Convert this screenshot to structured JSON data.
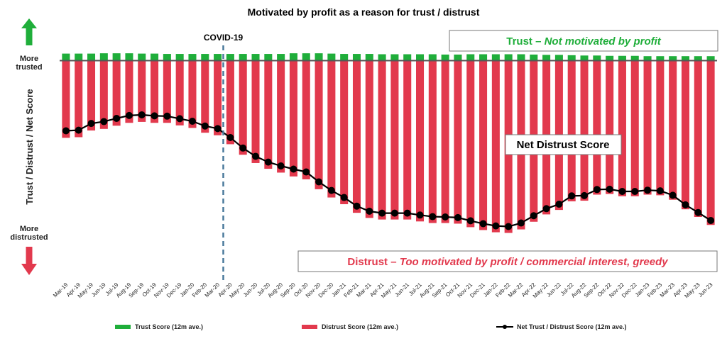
{
  "chart_data": {
    "type": "bar",
    "title": "Motivated by profit as a reason for trust / distrust",
    "ylabel": "Trust / Distrust / Net Score",
    "y_top_label": "More trusted",
    "y_bottom_label": "More distrusted",
    "categories": [
      "Mar-19",
      "Apr-19",
      "May-19",
      "Jun-19",
      "Jul-19",
      "Aug-19",
      "Sep-19",
      "Oct-19",
      "Nov-19",
      "Dec-19",
      "Jan-20",
      "Feb-20",
      "Mar-20",
      "Apr-20",
      "May-20",
      "Jun-20",
      "Jul-20",
      "Aug-20",
      "Sep-20",
      "Oct-20",
      "Nov-20",
      "Dec-20",
      "Jan-21",
      "Feb-21",
      "Mar-21",
      "Apr-21",
      "May-21",
      "Jun-21",
      "Jul-21",
      "Aug-21",
      "Sep-21",
      "Oct-21",
      "Nov-21",
      "Dec-21",
      "Jan-22",
      "Feb-22",
      "Mar-22",
      "Apr-22",
      "May-22",
      "Jun-22",
      "Jul-22",
      "Aug-22",
      "Sep-22",
      "Oct-22",
      "Nov-22",
      "Dec-22",
      "Jan-23",
      "Feb-23",
      "Mar-23",
      "Apr-23",
      "May-23",
      "Jun-23"
    ],
    "series": [
      {
        "name": "Trust Score (12m ave.)",
        "color": "#1fae3a",
        "values": [
          2.2,
          2.2,
          2.2,
          2.3,
          2.3,
          2.3,
          2.2,
          2.2,
          2.1,
          2.1,
          2.1,
          2.1,
          2.1,
          2.1,
          2.1,
          2.1,
          2.1,
          2.1,
          2.3,
          2.3,
          2.3,
          2.2,
          2.1,
          2.1,
          2.1,
          2.0,
          2.0,
          2.0,
          2.0,
          2.0,
          1.9,
          1.9,
          2.0,
          2.0,
          2.0,
          2.0,
          2.0,
          1.9,
          1.8,
          1.8,
          1.7,
          1.6,
          1.6,
          1.5,
          1.5,
          1.5,
          1.4,
          1.4,
          1.4,
          1.4,
          1.4,
          1.4
        ]
      },
      {
        "name": "Distrust Score (12m ave.)",
        "color": "#e2394d",
        "values": [
          -24.2,
          -24.0,
          -21.9,
          -21.4,
          -20.4,
          -19.5,
          -19.2,
          -19.5,
          -19.5,
          -20.3,
          -21.1,
          -22.6,
          -23.4,
          -26.2,
          -29.5,
          -32.1,
          -33.9,
          -35.1,
          -36.3,
          -37.2,
          -40.3,
          -42.9,
          -45.0,
          -47.7,
          -49.3,
          -49.8,
          -49.8,
          -49.8,
          -50.4,
          -50.9,
          -50.9,
          -51.1,
          -52.2,
          -53.1,
          -53.8,
          -54.0,
          -52.9,
          -50.5,
          -48.2,
          -46.8,
          -44.1,
          -43.9,
          -42.0,
          -41.8,
          -42.5,
          -42.5,
          -42.0,
          -42.2,
          -43.6,
          -46.6,
          -49.0,
          -51.5
        ]
      },
      {
        "name": "Net Trust / Distrust Score (12m ave.)",
        "color": "#000000",
        "values": [
          -22.0,
          -21.8,
          -19.7,
          -19.1,
          -18.1,
          -17.2,
          -17.0,
          -17.3,
          -17.4,
          -18.2,
          -19.0,
          -20.5,
          -21.3,
          -24.1,
          -27.4,
          -30.0,
          -31.8,
          -33.0,
          -34.0,
          -34.9,
          -38.0,
          -40.7,
          -42.9,
          -45.6,
          -47.2,
          -47.8,
          -47.8,
          -47.8,
          -48.4,
          -48.9,
          -49.0,
          -49.2,
          -50.2,
          -51.1,
          -51.8,
          -52.0,
          -50.9,
          -48.6,
          -46.4,
          -45.0,
          -42.4,
          -42.3,
          -40.4,
          -40.3,
          -41.0,
          -41.0,
          -40.6,
          -40.8,
          -42.2,
          -45.2,
          -47.6,
          -50.1
        ]
      }
    ],
    "ylim": [
      -57,
      3
    ],
    "grid": false,
    "legend": "bottom",
    "annotations": {
      "covid_label": "COVID-19",
      "covid_at": "Apr-20",
      "trust_box_prefix": "Trust – ",
      "trust_box_italic": "Not motivated by profit",
      "net_box": "Net Distrust Score",
      "distrust_box_prefix": "Distrust – ",
      "distrust_box_italic": "Too motivated by profit / commercial interest, greedy"
    },
    "colors": {
      "up_arrow": "#1fae3a",
      "down_arrow": "#e2394d",
      "covid_line": "#4a7a9c",
      "baseline": "#555555"
    }
  }
}
